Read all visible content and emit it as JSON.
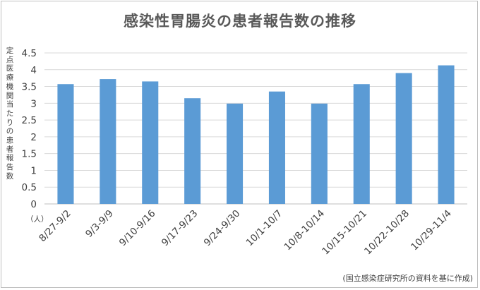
{
  "chart_data": {
    "type": "bar",
    "title": "感染性胃腸炎の患者報告数の推移",
    "ylabel": "定点医療機関当たりの患者報告数",
    "yunit": "（人）",
    "source": "(国立感染症研究所の資料を基に作成)",
    "categories": [
      "8/27-9/2",
      "9/3-9/9",
      "9/10-9/16",
      "9/17-9/23",
      "9/24-9/30",
      "10/1-10/7",
      "10/8-10/14",
      "10/15-10/21",
      "10/22-10/28",
      "10/29-11/4"
    ],
    "values": [
      3.57,
      3.72,
      3.65,
      3.15,
      2.99,
      3.35,
      2.99,
      3.57,
      3.9,
      4.13
    ],
    "ylim": [
      0,
      4.5
    ],
    "yticks": [
      "0",
      "0.5",
      "1",
      "1.5",
      "2",
      "2.5",
      "3",
      "3.5",
      "4",
      "4.5"
    ],
    "grid": true,
    "bar_color": "#5b9bd5"
  }
}
